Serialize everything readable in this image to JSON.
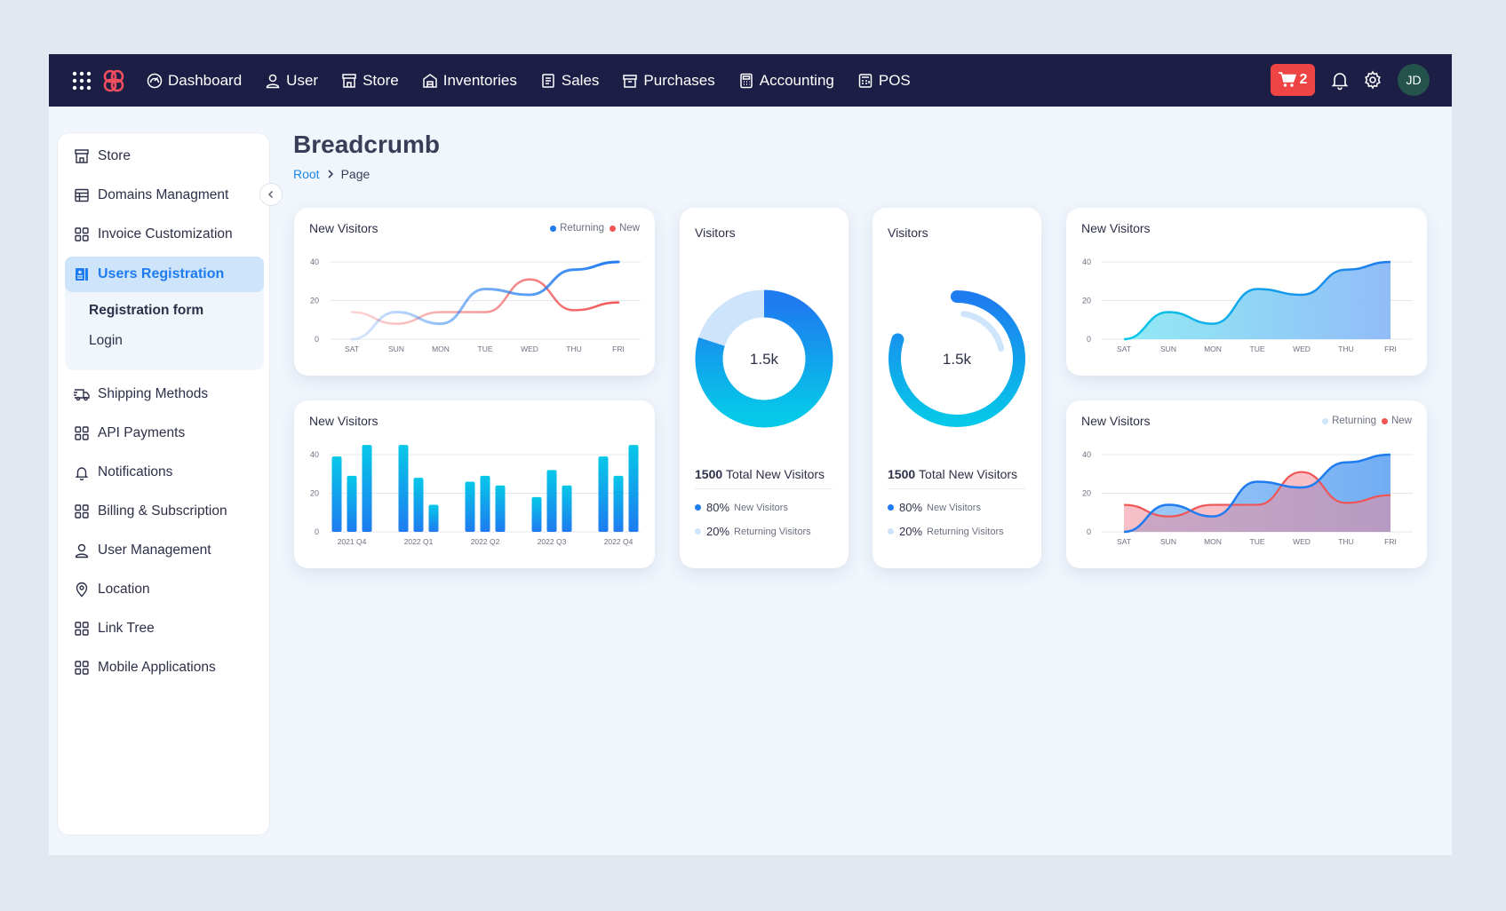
{
  "colors": {
    "navy": "#1c1e45",
    "blue": "#1e7bf0",
    "cyan": "#06c8e8",
    "red": "#f05454",
    "light_blue": "#cde4fb"
  },
  "topbar": {
    "nav": [
      {
        "label": "Dashboard",
        "icon": "dashboard-icon"
      },
      {
        "label": "User",
        "icon": "user-icon"
      },
      {
        "label": "Store",
        "icon": "store-icon"
      },
      {
        "label": "Inventories",
        "icon": "warehouse-icon"
      },
      {
        "label": "Sales",
        "icon": "receipt-icon"
      },
      {
        "label": "Purchases",
        "icon": "archive-icon"
      },
      {
        "label": "Accounting",
        "icon": "calculator-icon"
      },
      {
        "label": "POS",
        "icon": "register-icon"
      }
    ],
    "cart_count": "2",
    "avatar_initials": "JD"
  },
  "sidebar": {
    "items": [
      {
        "label": "Store",
        "icon": "store-icon"
      },
      {
        "label": "Domains Managment",
        "icon": "table-icon"
      },
      {
        "label": "Invoice Customization",
        "icon": "grid-icon"
      },
      {
        "label": "Users Registration",
        "icon": "id-card-icon"
      },
      {
        "label": "Shipping Methods",
        "icon": "truck-icon"
      },
      {
        "label": "API Payments",
        "icon": "grid-icon"
      },
      {
        "label": "Notifications",
        "icon": "bell-icon"
      },
      {
        "label": "Billing & Subscription",
        "icon": "grid-icon"
      },
      {
        "label": "User Management",
        "icon": "user-icon"
      },
      {
        "label": "Location",
        "icon": "pin-icon"
      },
      {
        "label": "Link Tree",
        "icon": "grid-icon"
      },
      {
        "label": "Mobile Applications",
        "icon": "grid-icon"
      }
    ],
    "sub_items": [
      "Registration form",
      "Login"
    ]
  },
  "page": {
    "title": "Breadcrumb",
    "breadcrumb": {
      "root": "Root",
      "current": "Page"
    }
  },
  "cards": {
    "line_title": "New Visitors",
    "bar_title": "New Visitors",
    "donut_title": "Visitors",
    "ring_title": "Visitors",
    "area_title": "New Visitors",
    "area2_title": "New Visitors",
    "legend_returning": "Returning",
    "legend_new": "New",
    "center_value": "1.5k",
    "total_number": "1500",
    "total_label": "Total New Visitors",
    "new_pct": "80%",
    "new_label": "New Visitors",
    "returning_pct": "20%",
    "returning_label": "Returning Visitors"
  },
  "chart_data": [
    {
      "type": "line",
      "title": "New Visitors",
      "categories": [
        "SAT",
        "SUN",
        "MON",
        "TUE",
        "WED",
        "THU",
        "FRI"
      ],
      "ylim": [
        0,
        40
      ],
      "yticks": [
        0,
        20,
        40
      ],
      "series": [
        {
          "name": "Returning",
          "values": [
            0,
            14,
            8,
            26,
            23,
            36,
            40
          ]
        },
        {
          "name": "New",
          "values": [
            14,
            8,
            14,
            14,
            31,
            15,
            19
          ]
        }
      ],
      "legend": "top-right",
      "grid": true
    },
    {
      "type": "bar",
      "title": "New Visitors",
      "categories": [
        "2021 Q4",
        "2022 Q1",
        "2022 Q2",
        "2022 Q3",
        "2022 Q4"
      ],
      "ylim": [
        0,
        40
      ],
      "yticks": [
        0,
        20,
        40
      ],
      "groups": [
        [
          39,
          29,
          45
        ],
        [
          45,
          28,
          14
        ],
        [
          26,
          29,
          24
        ],
        [
          18,
          32,
          24
        ],
        [
          39,
          29,
          45
        ]
      ],
      "grid": true
    },
    {
      "type": "pie",
      "title": "Visitors",
      "center_label": "1.5k",
      "slices": [
        {
          "name": "New Visitors",
          "value": 80
        },
        {
          "name": "Returning Visitors",
          "value": 20
        }
      ]
    },
    {
      "type": "pie",
      "title": "Visitors",
      "center_label": "1.5k",
      "slices": [
        {
          "name": "New Visitors",
          "value": 80
        },
        {
          "name": "Returning Visitors",
          "value": 20
        }
      ]
    },
    {
      "type": "area",
      "title": "New Visitors",
      "categories": [
        "SAT",
        "SUN",
        "MON",
        "TUE",
        "WED",
        "THU",
        "FRI"
      ],
      "ylim": [
        0,
        40
      ],
      "yticks": [
        0,
        20,
        40
      ],
      "series": [
        {
          "values": [
            0,
            14,
            8,
            26,
            23,
            36,
            40
          ]
        }
      ],
      "grid": true
    },
    {
      "type": "area",
      "title": "New Visitors",
      "categories": [
        "SAT",
        "SUN",
        "MON",
        "TUE",
        "WED",
        "THU",
        "FRI"
      ],
      "ylim": [
        0,
        40
      ],
      "yticks": [
        0,
        20,
        40
      ],
      "series": [
        {
          "name": "Returning",
          "values": [
            0,
            14,
            8,
            26,
            23,
            36,
            40
          ]
        },
        {
          "name": "New",
          "values": [
            14,
            8,
            14,
            14,
            31,
            15,
            19
          ]
        }
      ],
      "legend": "top-right",
      "grid": true
    }
  ]
}
